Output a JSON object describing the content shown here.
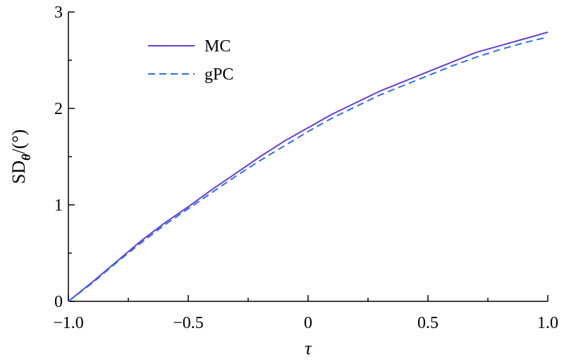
{
  "chart_data": {
    "type": "line",
    "title": "",
    "xlabel": "τ",
    "ylabel": {
      "main": "SD",
      "subscript": "θ",
      "suffix": "/(°)"
    },
    "xlim": [
      -1.0,
      1.0
    ],
    "ylim": [
      0,
      3
    ],
    "xticks": [
      {
        "value": -1.0,
        "label": "−1.0"
      },
      {
        "value": -0.5,
        "label": "−0.5"
      },
      {
        "value": 0,
        "label": "0"
      },
      {
        "value": 0.5,
        "label": "0.5"
      },
      {
        "value": 1.0,
        "label": "1.0"
      }
    ],
    "yticks": [
      {
        "value": 0,
        "label": "0"
      },
      {
        "value": 1,
        "label": "1"
      },
      {
        "value": 2,
        "label": "2"
      },
      {
        "value": 3,
        "label": "3"
      }
    ],
    "grid": false,
    "legend_position": "top-left",
    "series": [
      {
        "name": "MC",
        "color": "#6a3ccf",
        "style": "solid",
        "x": [
          -1.0,
          -0.9,
          -0.8,
          -0.7,
          -0.6,
          -0.5,
          -0.4,
          -0.3,
          -0.2,
          -0.1,
          0.0,
          0.1,
          0.2,
          0.3,
          0.4,
          0.5,
          0.6,
          0.7,
          0.8,
          0.9,
          1.0
        ],
        "y": [
          0.0,
          0.2,
          0.41,
          0.62,
          0.81,
          0.98,
          1.16,
          1.33,
          1.5,
          1.66,
          1.8,
          1.94,
          2.06,
          2.18,
          2.28,
          2.38,
          2.48,
          2.58,
          2.65,
          2.72,
          2.79
        ]
      },
      {
        "name": "gPC",
        "color": "#2b6fe0",
        "style": "dashed",
        "x": [
          -1.0,
          -0.9,
          -0.8,
          -0.7,
          -0.6,
          -0.5,
          -0.4,
          -0.3,
          -0.2,
          -0.1,
          0.0,
          0.1,
          0.2,
          0.3,
          0.4,
          0.5,
          0.6,
          0.7,
          0.8,
          0.9,
          1.0
        ],
        "y": [
          0.0,
          0.19,
          0.4,
          0.6,
          0.79,
          0.96,
          1.13,
          1.3,
          1.46,
          1.61,
          1.76,
          1.9,
          2.02,
          2.14,
          2.24,
          2.34,
          2.44,
          2.53,
          2.61,
          2.68,
          2.74
        ]
      }
    ]
  }
}
